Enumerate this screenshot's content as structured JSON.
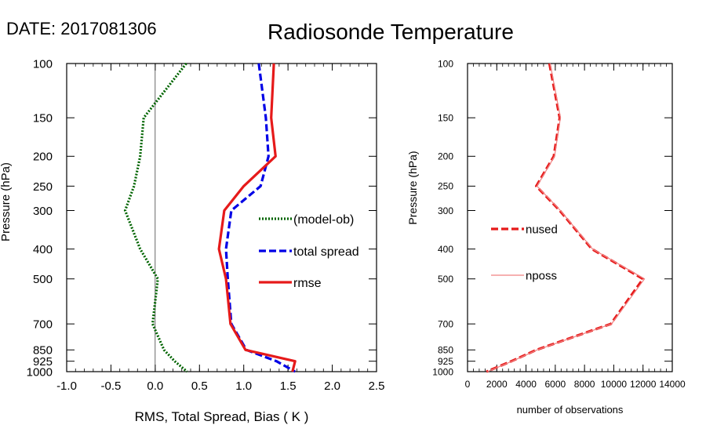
{
  "header": {
    "date_label": "DATE: 2017081306",
    "title": "Radiosonde Temperature"
  },
  "chart_data": [
    {
      "type": "line",
      "orientation": "vertical-profile",
      "xlabel": "RMS, Total Spread, Bias ( K )",
      "ylabel": "Pressure (hPa)",
      "xlim": [
        -1.0,
        2.5
      ],
      "ylim": [
        1000,
        100
      ],
      "y_scale": "log",
      "x_ticks": [
        "-1.0",
        "-0.5",
        "0.0",
        "0.5",
        "1.0",
        "1.5",
        "2.0",
        "2.5"
      ],
      "x_tick_values": [
        -1.0,
        -0.5,
        0.0,
        0.5,
        1.0,
        1.5,
        2.0,
        2.5
      ],
      "y_ticks": [
        "100",
        "150",
        "200",
        "250",
        "300",
        "400",
        "500",
        "700",
        "850",
        "925",
        "1000"
      ],
      "y_tick_values": [
        100,
        150,
        200,
        250,
        300,
        400,
        500,
        700,
        850,
        925,
        1000
      ],
      "zero_line": 0.0,
      "legend_position": "center-right",
      "series": [
        {
          "name": "(model-ob)",
          "style": "dotted",
          "color": "#006400",
          "pressure": [
            100,
            150,
            200,
            250,
            300,
            400,
            500,
            700,
            850,
            925,
            1000
          ],
          "values": [
            0.35,
            -0.13,
            -0.17,
            -0.24,
            -0.34,
            -0.17,
            0.03,
            -0.03,
            0.1,
            0.22,
            0.36
          ]
        },
        {
          "name": "total spread",
          "style": "dashed",
          "color": "#0000e6",
          "pressure": [
            100,
            150,
            200,
            250,
            300,
            400,
            500,
            700,
            850,
            925,
            1000
          ],
          "values": [
            1.17,
            1.25,
            1.28,
            1.19,
            0.86,
            0.8,
            0.82,
            0.86,
            1.03,
            1.37,
            1.58
          ]
        },
        {
          "name": "rmse",
          "style": "solid",
          "color": "#e61a1a",
          "pressure": [
            100,
            150,
            200,
            250,
            300,
            400,
            500,
            700,
            850,
            925,
            1000
          ],
          "values": [
            1.34,
            1.31,
            1.36,
            1.0,
            0.78,
            0.72,
            0.8,
            0.85,
            1.02,
            1.58,
            1.55
          ]
        }
      ]
    },
    {
      "type": "line",
      "orientation": "vertical-profile",
      "xlabel": "number of observations",
      "ylabel": "Pressure (hPa)",
      "xlim": [
        0,
        14000
      ],
      "ylim": [
        1000,
        100
      ],
      "y_scale": "log",
      "x_ticks": [
        "0",
        "2000",
        "4000",
        "6000",
        "8000",
        "10000",
        "12000",
        "14000"
      ],
      "x_tick_values": [
        0,
        2000,
        4000,
        6000,
        8000,
        10000,
        12000,
        14000
      ],
      "y_ticks": [
        "100",
        "150",
        "200",
        "250",
        "300",
        "400",
        "500",
        "700",
        "850",
        "925",
        "1000"
      ],
      "y_tick_values": [
        100,
        150,
        200,
        250,
        300,
        400,
        500,
        700,
        850,
        925,
        1000
      ],
      "legend_position": "center-left",
      "series": [
        {
          "name": "nused",
          "style": "dashed",
          "color": "#e61a1a",
          "pressure": [
            100,
            150,
            200,
            250,
            300,
            400,
            500,
            700,
            850,
            925,
            1000
          ],
          "values": [
            5600,
            6300,
            5900,
            4700,
            6300,
            8500,
            12000,
            9800,
            4700,
            3000,
            1300
          ]
        },
        {
          "name": "nposs",
          "style": "solid-thin",
          "color": "#f08080",
          "pressure": [
            100,
            150,
            200,
            250,
            300,
            400,
            500,
            700,
            850,
            925,
            1000
          ],
          "values": [
            5650,
            6350,
            5950,
            4750,
            6350,
            8550,
            12100,
            9850,
            4750,
            3050,
            1350
          ]
        }
      ]
    }
  ]
}
